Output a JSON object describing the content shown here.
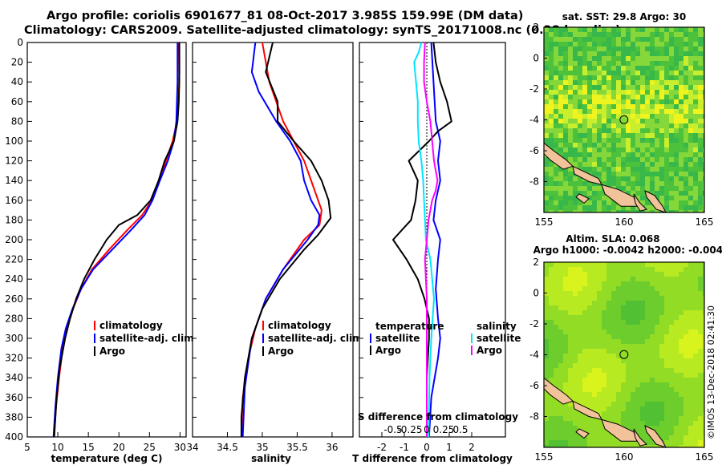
{
  "title_line1": "Argo profile: coriolis 6901677_81 08-Oct-2017 3.985S 159.99E (DM data)",
  "title_line2": "Climatology: CARS2009. Satellite-adjusted climatology: synTS_20171008.nc (0.28d earlier)",
  "stamp": "©IMOS 13-Dec-2018 02:41:30",
  "colors": {
    "climatology": "#ff0000",
    "satellite": "#0000ff",
    "argo": "#000000",
    "sat_salinity": "#00e5ff",
    "argo_salinity": "#ff00ff"
  },
  "chart_data": [
    {
      "type": "line",
      "name": "temperature-profile",
      "xlabel": "temperature (deg C)",
      "ylabel": "depth",
      "xlim": [
        5,
        31
      ],
      "ylim": [
        0,
        400
      ],
      "xticks": [
        5,
        10,
        15,
        20,
        25,
        30
      ],
      "yticks": [
        0,
        20,
        40,
        60,
        80,
        100,
        120,
        140,
        160,
        180,
        200,
        220,
        240,
        260,
        280,
        300,
        320,
        340,
        360,
        380,
        400
      ],
      "legend": [
        "climatology",
        "satellite-adj. clim.",
        "Argo"
      ],
      "series": [
        {
          "name": "climatology",
          "depth": [
            0,
            40,
            80,
            100,
            120,
            140,
            160,
            175,
            190,
            210,
            230,
            250,
            270,
            290,
            310,
            340,
            370,
            400
          ],
          "values": [
            29.8,
            29.9,
            29.5,
            28.8,
            27.7,
            26.6,
            25.4,
            23.8,
            21.4,
            18.4,
            15.6,
            13.8,
            12.5,
            11.5,
            10.8,
            10.2,
            9.7,
            9.4
          ]
        },
        {
          "name": "satellite-adj. clim.",
          "depth": [
            0,
            40,
            80,
            100,
            120,
            140,
            160,
            175,
            190,
            210,
            230,
            250,
            270,
            290,
            310,
            340,
            370,
            400
          ],
          "values": [
            29.6,
            29.6,
            29.4,
            29.0,
            28.0,
            26.7,
            25.5,
            24.2,
            22.0,
            18.9,
            15.8,
            13.8,
            12.4,
            11.3,
            10.6,
            10.0,
            9.6,
            9.3
          ]
        },
        {
          "name": "Argo",
          "depth": [
            0,
            30,
            60,
            80,
            100,
            120,
            140,
            160,
            175,
            185,
            200,
            220,
            240,
            260,
            280,
            300,
            330,
            360,
            400
          ],
          "values": [
            29.9,
            29.9,
            29.8,
            29.6,
            29.0,
            27.5,
            26.5,
            25.2,
            23.0,
            20.0,
            18.0,
            16.0,
            14.3,
            13.0,
            12.0,
            11.2,
            10.3,
            9.8,
            9.4
          ]
        }
      ]
    },
    {
      "type": "line",
      "name": "salinity-profile",
      "xlabel": "salinity",
      "xlim": [
        34,
        36.3
      ],
      "ylim": [
        0,
        400
      ],
      "xticks": [
        34,
        34.5,
        35,
        35.5,
        36
      ],
      "legend": [
        "climatology",
        "satellite-adj. clim.",
        "Argo"
      ],
      "series": [
        {
          "name": "climatology",
          "depth": [
            0,
            40,
            80,
            120,
            150,
            170,
            185,
            200,
            230,
            260,
            290,
            320,
            360,
            400
          ],
          "values": [
            35.0,
            35.1,
            35.3,
            35.6,
            35.75,
            35.85,
            35.82,
            35.6,
            35.3,
            35.05,
            34.9,
            34.8,
            34.72,
            34.7
          ]
        },
        {
          "name": "satellite-adj. clim.",
          "depth": [
            0,
            30,
            50,
            80,
            100,
            120,
            140,
            160,
            175,
            185,
            200,
            230,
            260,
            300,
            350,
            400
          ],
          "values": [
            34.9,
            34.85,
            34.95,
            35.2,
            35.4,
            35.55,
            35.6,
            35.7,
            35.82,
            35.8,
            35.65,
            35.3,
            35.05,
            34.85,
            34.75,
            34.72
          ]
        },
        {
          "name": "Argo",
          "depth": [
            0,
            30,
            60,
            80,
            100,
            120,
            140,
            160,
            178,
            195,
            210,
            240,
            270,
            300,
            340,
            380,
            400
          ],
          "values": [
            35.15,
            35.05,
            35.22,
            35.22,
            35.45,
            35.7,
            35.85,
            35.95,
            35.98,
            35.8,
            35.6,
            35.25,
            35.0,
            34.85,
            34.75,
            34.7,
            34.7
          ]
        }
      ]
    },
    {
      "type": "line",
      "name": "difference-profile",
      "xlabel": "T difference from climatology",
      "xlim": [
        -3,
        3.5
      ],
      "ylim": [
        0,
        400
      ],
      "xticks": [
        -2,
        -1,
        0,
        1,
        2
      ],
      "top_axis_label": "S difference from climatology",
      "top_axis_ticks": [
        "-0.5",
        "-0.25",
        "0",
        "0.25",
        "0.5"
      ],
      "legend_temperature": {
        "heading": "temperature",
        "items": [
          "satellite",
          "Argo"
        ]
      },
      "legend_salinity": {
        "heading": "salinity",
        "items": [
          "satellite",
          "Argo"
        ]
      },
      "series": [
        {
          "name": "T satellite",
          "depth": [
            0,
            40,
            80,
            100,
            120,
            140,
            160,
            180,
            200,
            220,
            250,
            280,
            300,
            320,
            360,
            400
          ],
          "values": [
            0.2,
            0.3,
            0.4,
            0.6,
            0.5,
            0.6,
            0.4,
            0.3,
            0.6,
            0.5,
            0.4,
            0.5,
            0.6,
            0.5,
            0.2,
            0.1
          ]
        },
        {
          "name": "T Argo",
          "depth": [
            0,
            20,
            40,
            60,
            80,
            90,
            100,
            120,
            140,
            160,
            180,
            200,
            220,
            240,
            260,
            280,
            300,
            340,
            400
          ],
          "values": [
            0.3,
            0.4,
            0.6,
            0.9,
            1.1,
            0.5,
            0.1,
            -0.8,
            -0.4,
            -0.5,
            -0.7,
            -1.5,
            -0.9,
            -0.4,
            -0.1,
            0.1,
            0.1,
            0.0,
            0.0
          ]
        },
        {
          "name": "S satellite",
          "depth": [
            0,
            10,
            20,
            40,
            60,
            80,
            100,
            120,
            140,
            160,
            180,
            200,
            220,
            260,
            300,
            340,
            400
          ],
          "values": [
            -0.06,
            -0.09,
            -0.14,
            -0.12,
            -0.1,
            -0.1,
            -0.09,
            -0.06,
            -0.04,
            -0.03,
            -0.02,
            -0.01,
            0.04,
            0.08,
            0.05,
            0.03,
            0.02
          ]
        },
        {
          "name": "S Argo",
          "depth": [
            0,
            20,
            40,
            60,
            80,
            100,
            120,
            140,
            150,
            160,
            180,
            200,
            220,
            260,
            300,
            340,
            400
          ],
          "values": [
            -0.02,
            -0.03,
            -0.03,
            0.0,
            0.04,
            0.06,
            0.08,
            0.12,
            0.1,
            0.06,
            0.02,
            0.0,
            -0.02,
            0.0,
            0.0,
            0.0,
            0.0
          ]
        }
      ]
    },
    {
      "type": "heatmap",
      "name": "sst-map",
      "title": "sat. SST: 29.8 Argo: 30",
      "xlim": [
        155,
        165
      ],
      "ylim": [
        -10,
        2
      ],
      "xticks": [
        155,
        160,
        165
      ],
      "yticks": [
        2,
        0,
        -2,
        -4,
        -6,
        -8
      ],
      "marker": {
        "lon": 159.99,
        "lat": -3.985
      }
    },
    {
      "type": "heatmap",
      "name": "sla-map",
      "title": "Altim. SLA: 0.068",
      "subtitle": "Argo h1000: -0.0042 h2000: -0.0049",
      "xlim": [
        155,
        165
      ],
      "ylim": [
        -10,
        2
      ],
      "xticks": [
        155,
        160,
        165
      ],
      "yticks": [
        2,
        0,
        -2,
        -4,
        -6,
        -8
      ],
      "marker": {
        "lon": 159.99,
        "lat": -3.985
      }
    }
  ]
}
